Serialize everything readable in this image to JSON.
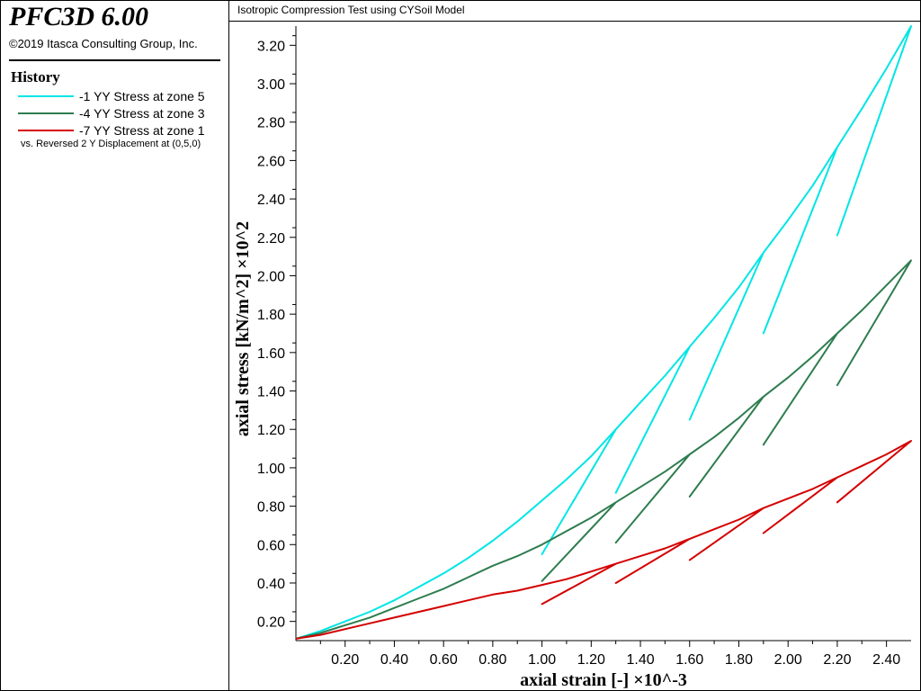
{
  "app": {
    "title": "PFC3D 6.00",
    "copyright": "©2019 Itasca Consulting Group, Inc."
  },
  "history": {
    "title": "History",
    "items": [
      {
        "label": "-1 YY Stress at zone 5",
        "color": "#00e5e5"
      },
      {
        "label": "-4 YY Stress at zone 3",
        "color": "#2e7d4f"
      },
      {
        "label": "-7 YY Stress at zone 1",
        "color": "#d40000"
      }
    ],
    "vs_note": "vs. Reversed 2 Y Displacement at (0,5,0)"
  },
  "plot": {
    "title": "Isotropic Compression Test using CYSoil Model"
  },
  "chart_data": {
    "type": "line",
    "xlabel": "axial strain [-] ×10^-3",
    "ylabel": "axial stress [kN/m^2] ×10^2",
    "xlim": [
      0.0,
      2.5
    ],
    "ylim": [
      0.1,
      3.3
    ],
    "x_ticks": [
      "0.20",
      "0.40",
      "0.60",
      "0.80",
      "1.00",
      "1.20",
      "1.40",
      "1.60",
      "1.80",
      "2.00",
      "2.20",
      "2.40"
    ],
    "y_ticks": [
      "0.20",
      "0.40",
      "0.60",
      "0.80",
      "1.00",
      "1.20",
      "1.40",
      "1.60",
      "1.80",
      "2.00",
      "2.20",
      "2.40",
      "2.60",
      "2.80",
      "3.00",
      "3.20"
    ],
    "grid": false,
    "series": [
      {
        "name": "-1 YY Stress at zone 5",
        "color": "#00e5e5",
        "points": [
          [
            0.0,
            0.11
          ],
          [
            0.1,
            0.15
          ],
          [
            0.2,
            0.2
          ],
          [
            0.3,
            0.25
          ],
          [
            0.4,
            0.31
          ],
          [
            0.5,
            0.38
          ],
          [
            0.6,
            0.45
          ],
          [
            0.7,
            0.53
          ],
          [
            0.8,
            0.62
          ],
          [
            0.9,
            0.72
          ],
          [
            1.0,
            0.83
          ],
          [
            1.1,
            0.94
          ],
          [
            1.2,
            1.06
          ],
          [
            1.3,
            1.2
          ],
          [
            1.0,
            0.55
          ],
          [
            1.3,
            1.2
          ],
          [
            1.4,
            1.34
          ],
          [
            1.5,
            1.48
          ],
          [
            1.6,
            1.63
          ],
          [
            1.3,
            0.87
          ],
          [
            1.6,
            1.63
          ],
          [
            1.7,
            1.78
          ],
          [
            1.8,
            1.94
          ],
          [
            1.9,
            2.12
          ],
          [
            1.6,
            1.25
          ],
          [
            1.9,
            2.12
          ],
          [
            2.0,
            2.29
          ],
          [
            2.1,
            2.47
          ],
          [
            2.2,
            2.67
          ],
          [
            1.9,
            1.7
          ],
          [
            2.2,
            2.67
          ],
          [
            2.3,
            2.87
          ],
          [
            2.4,
            3.08
          ],
          [
            2.5,
            3.3
          ],
          [
            2.2,
            2.21
          ],
          [
            2.5,
            3.3
          ]
        ]
      },
      {
        "name": "-4 YY Stress at zone 3",
        "color": "#2e7d4f",
        "points": [
          [
            0.0,
            0.11
          ],
          [
            0.1,
            0.14
          ],
          [
            0.2,
            0.18
          ],
          [
            0.3,
            0.22
          ],
          [
            0.4,
            0.27
          ],
          [
            0.5,
            0.32
          ],
          [
            0.6,
            0.37
          ],
          [
            0.7,
            0.43
          ],
          [
            0.8,
            0.49
          ],
          [
            0.9,
            0.54
          ],
          [
            1.0,
            0.6
          ],
          [
            1.1,
            0.67
          ],
          [
            1.2,
            0.74
          ],
          [
            1.3,
            0.82
          ],
          [
            1.0,
            0.41
          ],
          [
            1.3,
            0.82
          ],
          [
            1.4,
            0.9
          ],
          [
            1.5,
            0.98
          ],
          [
            1.6,
            1.07
          ],
          [
            1.3,
            0.61
          ],
          [
            1.6,
            1.07
          ],
          [
            1.7,
            1.16
          ],
          [
            1.8,
            1.26
          ],
          [
            1.9,
            1.37
          ],
          [
            1.6,
            0.85
          ],
          [
            1.9,
            1.37
          ],
          [
            2.0,
            1.47
          ],
          [
            2.1,
            1.58
          ],
          [
            2.2,
            1.7
          ],
          [
            1.9,
            1.12
          ],
          [
            2.2,
            1.7
          ],
          [
            2.3,
            1.82
          ],
          [
            2.4,
            1.95
          ],
          [
            2.5,
            2.08
          ],
          [
            2.2,
            1.43
          ],
          [
            2.5,
            2.08
          ]
        ]
      },
      {
        "name": "-7 YY Stress at zone 1",
        "color": "#d40000",
        "points": [
          [
            0.0,
            0.11
          ],
          [
            0.1,
            0.13
          ],
          [
            0.2,
            0.16
          ],
          [
            0.3,
            0.19
          ],
          [
            0.4,
            0.22
          ],
          [
            0.5,
            0.25
          ],
          [
            0.6,
            0.28
          ],
          [
            0.7,
            0.31
          ],
          [
            0.8,
            0.34
          ],
          [
            0.9,
            0.36
          ],
          [
            1.0,
            0.39
          ],
          [
            1.1,
            0.42
          ],
          [
            1.2,
            0.46
          ],
          [
            1.3,
            0.5
          ],
          [
            1.0,
            0.29
          ],
          [
            1.3,
            0.5
          ],
          [
            1.4,
            0.54
          ],
          [
            1.5,
            0.58
          ],
          [
            1.6,
            0.63
          ],
          [
            1.3,
            0.4
          ],
          [
            1.6,
            0.63
          ],
          [
            1.7,
            0.68
          ],
          [
            1.8,
            0.73
          ],
          [
            1.9,
            0.79
          ],
          [
            1.6,
            0.52
          ],
          [
            1.9,
            0.79
          ],
          [
            2.0,
            0.84
          ],
          [
            2.1,
            0.89
          ],
          [
            2.2,
            0.95
          ],
          [
            1.9,
            0.66
          ],
          [
            2.2,
            0.95
          ],
          [
            2.3,
            1.01
          ],
          [
            2.4,
            1.07
          ],
          [
            2.5,
            1.14
          ],
          [
            2.2,
            0.82
          ],
          [
            2.5,
            1.14
          ]
        ]
      }
    ]
  }
}
